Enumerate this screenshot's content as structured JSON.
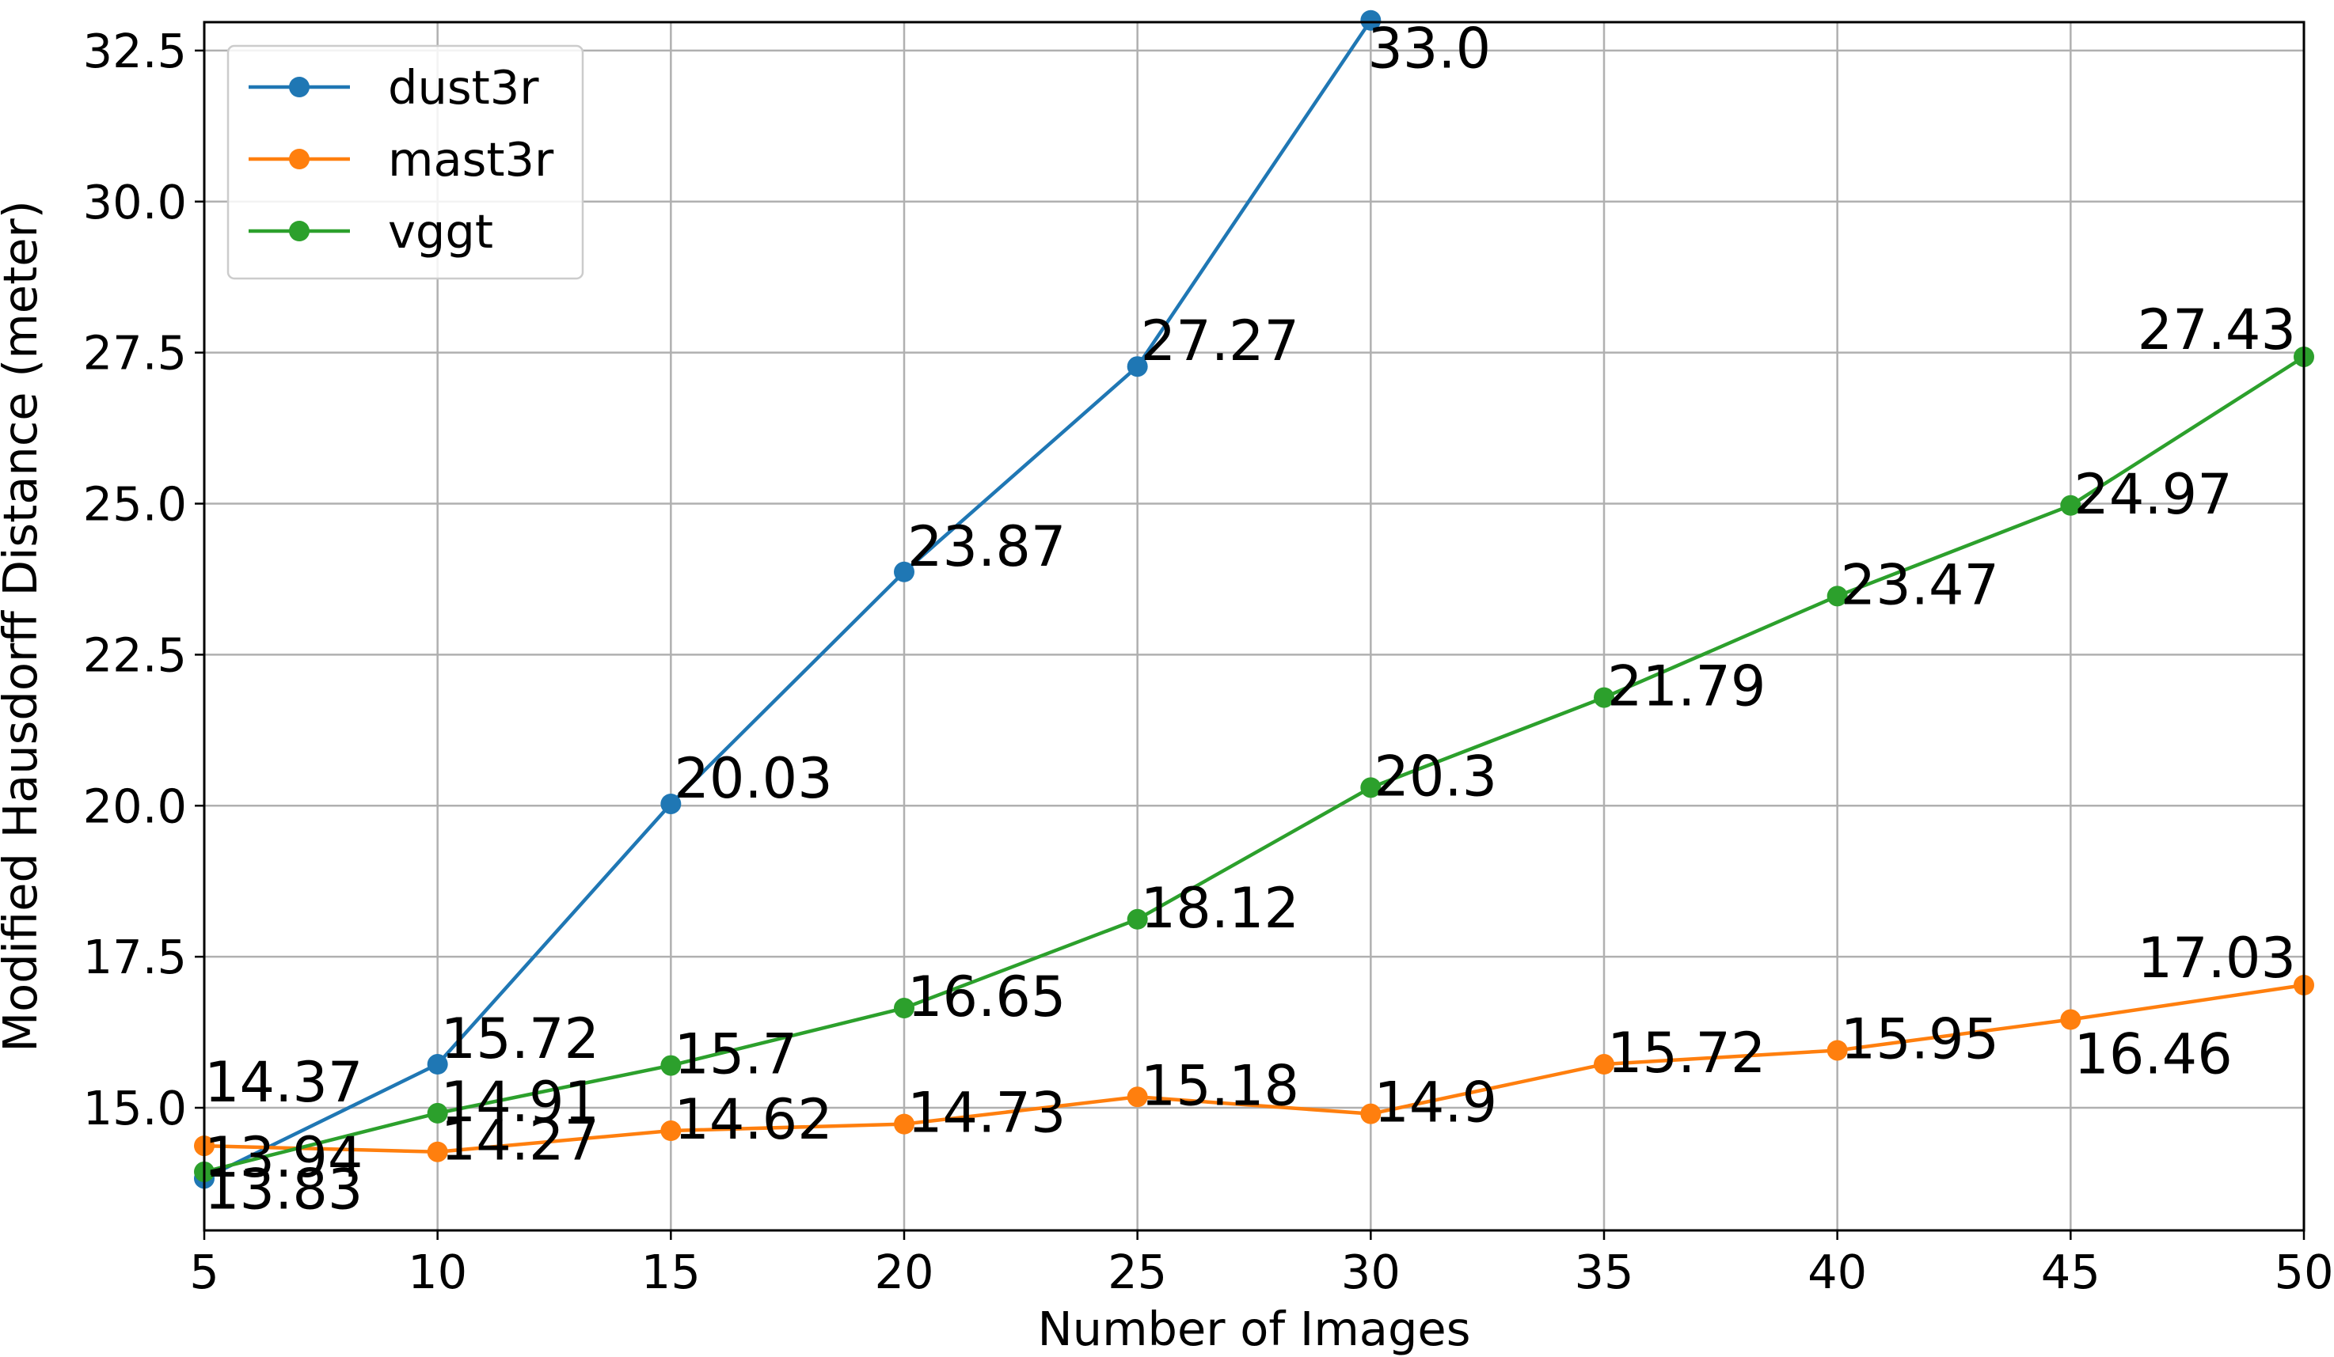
{
  "chart_data": {
    "type": "line",
    "xlabel": "Number of Images",
    "ylabel": "Modified Hausdorff Distance (meter)",
    "xlim": [
      5,
      50
    ],
    "ylim": [
      12.97,
      32.97
    ],
    "x_ticks": [
      5,
      10,
      15,
      20,
      25,
      30,
      35,
      40,
      45,
      50
    ],
    "y_ticks": [
      15.0,
      17.5,
      20.0,
      22.5,
      25.0,
      27.5,
      30.0,
      32.5
    ],
    "grid": true,
    "legend_position": "top-left",
    "series": [
      {
        "name": "dust3r",
        "color": "#1f77b4",
        "x": [
          5,
          10,
          15,
          20,
          25,
          30
        ],
        "values": [
          13.83,
          15.72,
          20.03,
          23.87,
          27.27,
          33.0
        ],
        "labels": [
          "13.83",
          "15.72",
          "20.03",
          "23.87",
          "27.27",
          "33.0"
        ]
      },
      {
        "name": "mast3r",
        "color": "#ff7f0e",
        "x": [
          5,
          10,
          15,
          20,
          25,
          30,
          35,
          40,
          45,
          50
        ],
        "values": [
          14.37,
          14.27,
          14.62,
          14.73,
          15.18,
          14.9,
          15.72,
          15.95,
          16.46,
          17.03
        ],
        "labels": [
          "14.37",
          "14.27",
          "14.62",
          "14.73",
          "15.18",
          "14.9",
          "15.72",
          "15.95",
          "16.46",
          "17.03"
        ]
      },
      {
        "name": "vggt",
        "color": "#2ca02c",
        "x": [
          5,
          10,
          15,
          20,
          25,
          30,
          35,
          40,
          45,
          50
        ],
        "values": [
          13.94,
          14.91,
          15.7,
          16.65,
          18.12,
          20.3,
          21.79,
          23.47,
          24.97,
          27.43
        ],
        "labels": [
          "13.94",
          "14.91",
          "15.7",
          "16.65",
          "18.12",
          "20.3",
          "21.79",
          "23.47",
          "24.97",
          "27.43"
        ]
      }
    ]
  }
}
